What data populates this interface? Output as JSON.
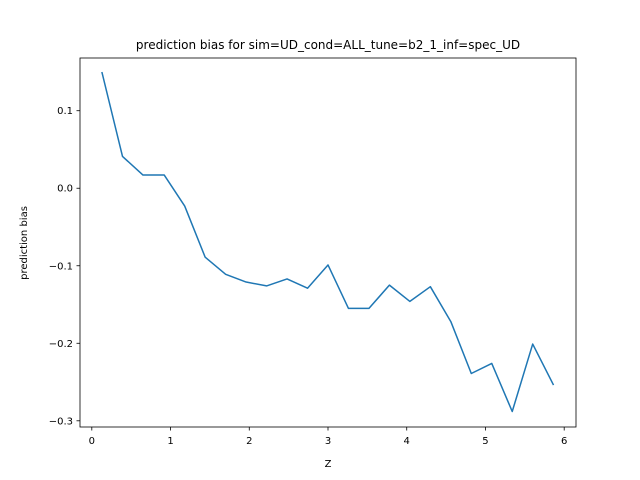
{
  "chart_data": {
    "type": "line",
    "title": "prediction bias for sim=UD_cond=ALL_tune=b2_1_inf=spec_UD",
    "xlabel": "Z",
    "ylabel": "prediction bias",
    "xlim": [
      -0.15,
      6.15
    ],
    "ylim": [
      -0.308,
      0.168
    ],
    "xticks": [
      0,
      1,
      2,
      3,
      4,
      5,
      6
    ],
    "xtick_labels": [
      "0",
      "1",
      "2",
      "3",
      "4",
      "5",
      "6"
    ],
    "yticks": [
      -0.3,
      -0.2,
      -0.1,
      0.0,
      0.1
    ],
    "ytick_labels": [
      "−0.3",
      "−0.2",
      "−0.1",
      "0.0",
      "0.1"
    ],
    "grid": false,
    "series": [
      {
        "color": "#1f77b4",
        "x": [
          0.13,
          0.39,
          0.65,
          0.92,
          1.18,
          1.44,
          1.7,
          1.96,
          2.22,
          2.48,
          2.74,
          3.0,
          3.26,
          3.52,
          3.78,
          4.04,
          4.3,
          4.56,
          4.82,
          5.08,
          5.34,
          5.6,
          5.86
        ],
        "y": [
          0.149,
          0.041,
          0.017,
          0.017,
          -0.023,
          -0.089,
          -0.111,
          -0.121,
          -0.126,
          -0.117,
          -0.129,
          -0.099,
          -0.155,
          -0.155,
          -0.125,
          -0.146,
          -0.127,
          -0.172,
          -0.239,
          -0.226,
          -0.288,
          -0.201,
          -0.253
        ]
      }
    ]
  }
}
